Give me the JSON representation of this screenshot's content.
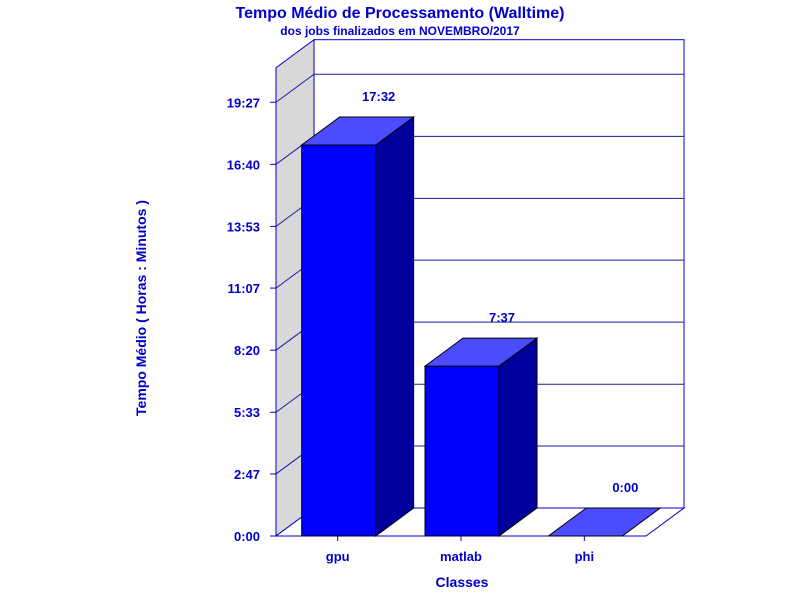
{
  "chart_data": {
    "type": "bar",
    "title": "Tempo Médio de Processamento (Walltime)",
    "subtitle": "dos jobs finalizados em NOVEMBRO/2017",
    "xlabel": "Classes",
    "ylabel": "Tempo Médio ( Horas : Minutos )",
    "categories": [
      "gpu",
      "matlab",
      "phi"
    ],
    "values": [
      17.533,
      7.617,
      0
    ],
    "value_labels": [
      "17:32",
      "7:37",
      "0:00"
    ],
    "y_ticks": [
      0,
      2.783,
      5.55,
      8.333,
      11.117,
      13.883,
      16.667,
      19.45
    ],
    "y_tick_labels": [
      "0:00",
      "2:47",
      "5:33",
      "8:20",
      "11:07",
      "13:53",
      "16:40",
      "19:27"
    ],
    "ylim": [
      0,
      21.0
    ],
    "grid": true,
    "style": "3d",
    "colors": {
      "bar_front": "#0000ff",
      "bar_top": "#4c4cff",
      "bar_side": "#00009c",
      "axis": "#0000cc",
      "text": "#0000cc",
      "left_wall": "#d8d8d8",
      "gridline": "#1a1aa0"
    }
  }
}
